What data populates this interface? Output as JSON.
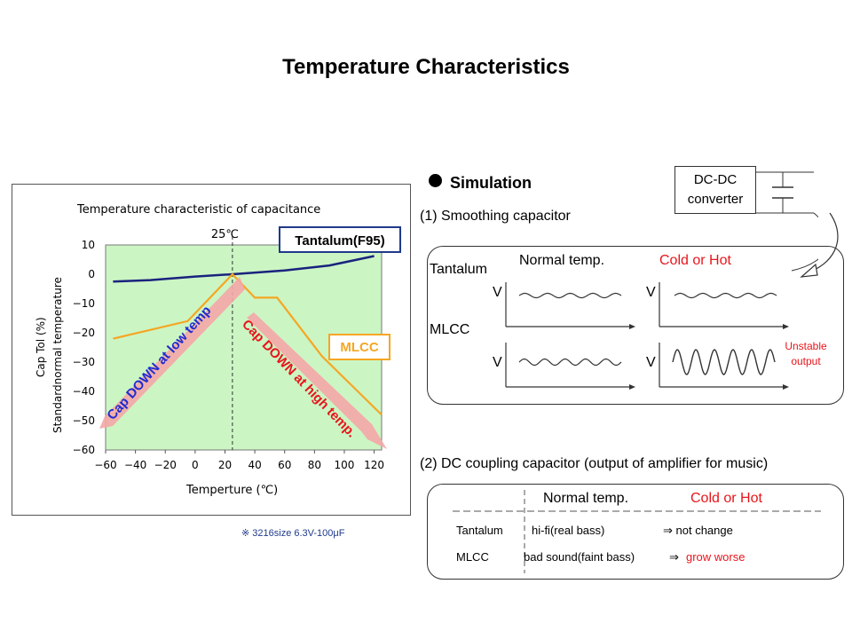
{
  "slide": {
    "title": "Temperature Characteristics",
    "footnote": "※  3216size  6.3V-100μF"
  },
  "chart_data": {
    "type": "line",
    "title": "Temperature characteristic of capacitance",
    "xlabel": "Temperture (℃)",
    "ylabel_line1": "Cap Tol (%)",
    "ylabel_line2": "Standardnormal temperature",
    "xlim": [
      -60,
      125
    ],
    "ylim": [
      -60,
      10
    ],
    "x_ticks": [
      -60,
      -40,
      -20,
      0,
      20,
      40,
      60,
      80,
      100,
      120
    ],
    "x_tick_labels": [
      "−60",
      "−40",
      "−20",
      "0",
      "20",
      "40",
      "60",
      "80",
      "100",
      "120"
    ],
    "y_ticks": [
      10,
      0,
      -10,
      -20,
      -30,
      -40,
      -50,
      -60
    ],
    "y_tick_labels": [
      "10",
      "0",
      "−10",
      "−20",
      "−30",
      "−40",
      "−50",
      "−60"
    ],
    "reference_x": 25,
    "reference_label": "25℃",
    "series": [
      {
        "name": "Tantalum(F95)",
        "color": "#1a237e",
        "points": [
          [
            -55,
            -2.5
          ],
          [
            -30,
            -2
          ],
          [
            0,
            -0.8
          ],
          [
            25,
            0
          ],
          [
            60,
            1.3
          ],
          [
            90,
            3
          ],
          [
            120,
            6.2
          ]
        ]
      },
      {
        "name": "MLCC",
        "color": "#f5a623",
        "points": [
          [
            -55,
            -22
          ],
          [
            -5,
            -16
          ],
          [
            25,
            0
          ],
          [
            40,
            -8
          ],
          [
            55,
            -8
          ],
          [
            85,
            -28
          ],
          [
            105,
            -38
          ],
          [
            125,
            -48
          ]
        ]
      }
    ],
    "annotations": {
      "low_temp": "Cap DOWN at low temp",
      "high_temp": "Cap DOWN at high temp."
    }
  },
  "simulation": {
    "header": "Simulation",
    "smoothing_title": "(1) Smoothing capacitor",
    "dcdc_line1": "DC-DC",
    "dcdc_line2": "converter",
    "normal_label": "Normal temp.",
    "hot_label": "Cold or Hot",
    "tantalum_label": "Tantalum",
    "mlcc_label": "MLCC",
    "v_label": "V",
    "unstable_line1": "Unstable",
    "unstable_line2": "output"
  },
  "coupling": {
    "title": "(2) DC coupling capacitor (output of amplifier for music)",
    "normal_label": "Normal temp.",
    "hot_label": "Cold or Hot",
    "tantalum_label": "Tantalum",
    "tantalum_normal": "hi-fi(real bass)",
    "tantalum_hot": "⇒ not change",
    "mlcc_label": "MLCC",
    "mlcc_normal": "bad sound(faint bass)",
    "mlcc_arrow": "⇒",
    "mlcc_hot": "grow worse"
  },
  "colors": {
    "plot_bg": "#ccf5c4",
    "red_text": "#e8151b",
    "blue_text": "#1f2bd1",
    "label_border_blue": "#1f3a8a",
    "label_border_orange": "#f5a623"
  }
}
